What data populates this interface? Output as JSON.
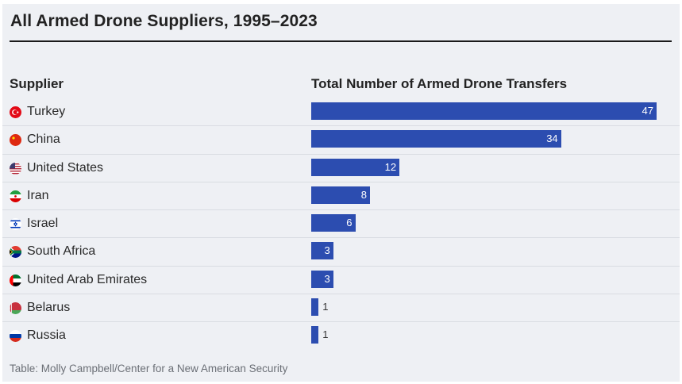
{
  "title": "All Armed Drone Suppliers, 1995–2023",
  "headers": {
    "supplier": "Supplier",
    "total": "Total Number of Armed Drone Transfers"
  },
  "source": "Table: Molly Campbell/Center for a New American Security",
  "colors": {
    "bar": "#2c4db0",
    "background": "#eef0f4"
  },
  "chart_data": {
    "type": "bar",
    "orientation": "horizontal",
    "title": "All Armed Drone Suppliers, 1995–2023",
    "xlabel": "Total Number of Armed Drone Transfers",
    "ylabel": "Supplier",
    "categories": [
      "Turkey",
      "China",
      "United States",
      "Iran",
      "Israel",
      "South Africa",
      "United Arab Emirates",
      "Belarus",
      "Russia"
    ],
    "values": [
      47,
      34,
      12,
      8,
      6,
      3,
      3,
      1,
      1
    ],
    "flag_icons": [
      "turkey-flag-icon",
      "china-flag-icon",
      "united-states-flag-icon",
      "iran-flag-icon",
      "israel-flag-icon",
      "south-africa-flag-icon",
      "uae-flag-icon",
      "belarus-flag-icon",
      "russia-flag-icon"
    ],
    "xlim": [
      0,
      47
    ],
    "grid": false,
    "legend": "none"
  }
}
